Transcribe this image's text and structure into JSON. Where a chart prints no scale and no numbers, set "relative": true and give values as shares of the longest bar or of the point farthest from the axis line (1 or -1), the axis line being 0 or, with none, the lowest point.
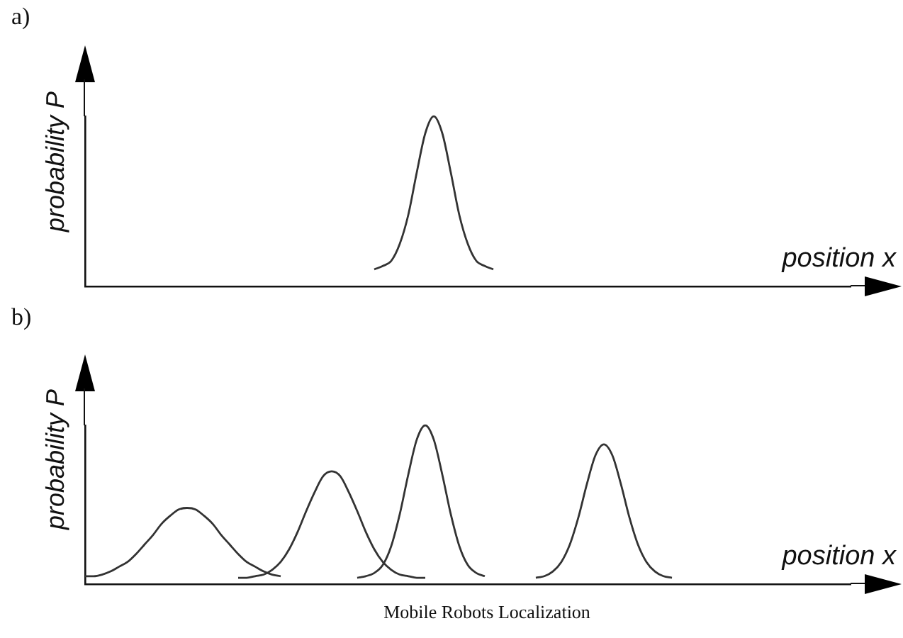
{
  "chart_data": [
    {
      "type": "line",
      "relative": true,
      "tick_labels": false,
      "marker": "none",
      "line_style": "solid",
      "xlabel": "position x",
      "ylabel": "probability P",
      "annotations": [
        "a)"
      ],
      "categories": [
        null,
        null,
        null,
        null,
        null,
        null,
        null,
        null,
        null,
        null,
        null,
        null,
        null,
        null,
        null,
        null,
        null,
        null,
        null,
        null,
        null,
        null,
        null,
        null,
        null,
        null,
        null,
        null,
        null,
        null,
        null,
        null,
        null,
        null,
        null,
        null,
        null,
        null,
        null,
        null,
        null,
        null,
        null,
        null,
        null,
        null,
        null,
        null,
        null,
        null,
        null,
        null,
        null,
        null,
        null,
        null,
        null,
        null,
        null,
        null,
        null,
        null,
        null,
        null,
        null,
        null,
        null,
        null,
        null,
        null,
        null,
        null,
        null,
        null,
        null,
        null,
        null,
        null,
        null,
        null,
        null,
        null,
        null,
        null,
        null,
        null,
        null,
        null,
        null,
        null,
        null
      ],
      "series": [
        {
          "color": "#333333",
          "values": [
            null,
            null,
            null,
            null,
            null,
            null,
            null,
            null,
            null,
            null,
            null,
            null,
            null,
            null,
            null,
            null,
            null,
            null,
            null,
            null,
            null,
            null,
            null,
            null,
            null,
            null,
            null,
            null,
            null,
            null,
            null,
            null,
            null,
            null,
            0.1,
            0.12,
            0.15,
            0.25,
            0.42,
            0.67,
            0.9,
            1,
            0.9,
            0.67,
            0.42,
            0.25,
            0.15,
            0.12,
            0.1,
            null,
            null,
            null,
            null,
            null,
            null,
            null,
            null,
            null,
            null,
            null,
            null,
            null,
            null,
            null,
            null,
            null,
            null,
            null,
            null,
            null,
            null,
            null,
            null,
            null,
            null,
            null,
            null,
            null,
            null,
            null,
            null,
            null,
            null,
            null,
            null,
            null,
            null,
            null,
            null,
            null,
            null
          ]
        }
      ]
    },
    {
      "type": "line",
      "relative": true,
      "tick_labels": false,
      "marker": "none",
      "line_style": "solid",
      "xlabel": "position x",
      "ylabel": "probability P",
      "annotations": [
        "b)",
        "Mobile Robots Localization"
      ],
      "categories": [
        null,
        null,
        null,
        null,
        null,
        null,
        null,
        null,
        null,
        null,
        null,
        null,
        null,
        null,
        null,
        null,
        null,
        null,
        null,
        null,
        null,
        null,
        null,
        null,
        null,
        null,
        null,
        null,
        null,
        null,
        null,
        null,
        null,
        null,
        null,
        null,
        null,
        null,
        null,
        null,
        null,
        null,
        null,
        null,
        null,
        null,
        null,
        null,
        null,
        null,
        null,
        null,
        null,
        null,
        null,
        null,
        null,
        null,
        null,
        null,
        null,
        null,
        null,
        null,
        null,
        null,
        null,
        null,
        null,
        null,
        null,
        null,
        null,
        null,
        null,
        null,
        null,
        null,
        null,
        null,
        null,
        null,
        null,
        null,
        null,
        null,
        null,
        null,
        null,
        null,
        null
      ],
      "series": [
        {
          "color": "#333333",
          "values": [
            0.05,
            0.05,
            0.06,
            0.08,
            0.11,
            0.14,
            0.19,
            0.25,
            0.31,
            0.38,
            0.43,
            0.47,
            0.48,
            0.47,
            0.43,
            0.38,
            0.31,
            0.25,
            0.19,
            0.14,
            0.11,
            0.08,
            0.06,
            0.05,
            null,
            null,
            null,
            null,
            null,
            null,
            null,
            null,
            null,
            null,
            null,
            null,
            null,
            null,
            null,
            null,
            null,
            null,
            null,
            null,
            null,
            null,
            null,
            null,
            null,
            null,
            null,
            null,
            null,
            null,
            null,
            null,
            null,
            null,
            null,
            null,
            null,
            null,
            null,
            null,
            null,
            null,
            null,
            null,
            null,
            null,
            null,
            null,
            null,
            null,
            null,
            null,
            null,
            null,
            null,
            null,
            null,
            null,
            null,
            null,
            null,
            null,
            null,
            null,
            null,
            null,
            null
          ]
        },
        {
          "color": "#333333",
          "values": [
            null,
            null,
            null,
            null,
            null,
            null,
            null,
            null,
            null,
            null,
            null,
            null,
            null,
            null,
            null,
            null,
            null,
            null,
            0.04,
            0.04,
            0.05,
            0.06,
            0.09,
            0.14,
            0.22,
            0.33,
            0.46,
            0.58,
            0.68,
            0.71,
            0.68,
            0.58,
            0.46,
            0.33,
            0.22,
            0.14,
            0.09,
            0.06,
            0.05,
            0.04,
            0.04,
            null,
            null,
            null,
            null,
            null,
            null,
            null,
            null,
            null,
            null,
            null,
            null,
            null,
            null,
            null,
            null,
            null,
            null,
            null,
            null,
            null,
            null,
            null,
            null,
            null,
            null,
            null,
            null,
            null,
            null,
            null,
            null,
            null,
            null,
            null,
            null,
            null,
            null,
            null,
            null,
            null,
            null,
            null,
            null,
            null,
            null,
            null,
            null,
            null,
            null
          ]
        },
        {
          "color": "#333333",
          "values": [
            null,
            null,
            null,
            null,
            null,
            null,
            null,
            null,
            null,
            null,
            null,
            null,
            null,
            null,
            null,
            null,
            null,
            null,
            null,
            null,
            null,
            null,
            null,
            null,
            null,
            null,
            null,
            null,
            null,
            null,
            null,
            null,
            0.04,
            0.05,
            0.07,
            0.12,
            0.24,
            0.44,
            0.69,
            0.91,
            1,
            0.91,
            0.69,
            0.44,
            0.24,
            0.12,
            0.07,
            0.05,
            null,
            null,
            null,
            null,
            null,
            null,
            null,
            null,
            null,
            null,
            null,
            null,
            null,
            null,
            null,
            null,
            null,
            null,
            null,
            null,
            null,
            null,
            null,
            null,
            null,
            null,
            null,
            null,
            null,
            null,
            null,
            null,
            null,
            null,
            null,
            null,
            null,
            null,
            null,
            null,
            null,
            null,
            null
          ]
        },
        {
          "color": "#333333",
          "values": [
            null,
            null,
            null,
            null,
            null,
            null,
            null,
            null,
            null,
            null,
            null,
            null,
            null,
            null,
            null,
            null,
            null,
            null,
            null,
            null,
            null,
            null,
            null,
            null,
            null,
            null,
            null,
            null,
            null,
            null,
            null,
            null,
            null,
            null,
            null,
            null,
            null,
            null,
            null,
            null,
            null,
            null,
            null,
            null,
            null,
            null,
            null,
            null,
            null,
            null,
            null,
            null,
            null,
            0.04,
            0.05,
            0.08,
            0.14,
            0.25,
            0.42,
            0.63,
            0.81,
            0.88,
            0.81,
            0.63,
            0.42,
            0.25,
            0.14,
            0.08,
            0.05,
            0.04,
            null,
            null,
            null,
            null,
            null,
            null,
            null,
            null,
            null,
            null,
            null,
            null,
            null,
            null,
            null,
            null,
            null,
            null,
            null,
            null,
            null
          ]
        }
      ]
    }
  ]
}
